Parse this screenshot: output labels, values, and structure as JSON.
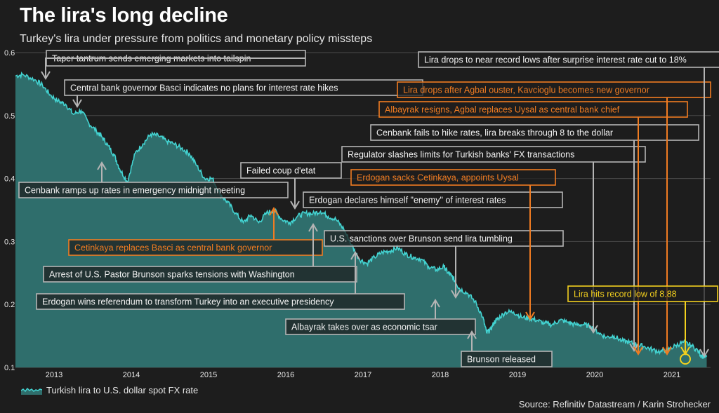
{
  "title": "The lira's long decline",
  "subtitle": "Turkey's lira under pressure from politics and monetary policy missteps",
  "source": "Source: Refinitiv Datastream / Karin Strohecker",
  "colors": {
    "background": "#1d1d1d",
    "line": "#43d3d1",
    "area": "#2f6e6c",
    "gray_box": "#b4b4b4",
    "orange": "#f07c22",
    "yellow": "#f4d11e",
    "grid": "#4a4a4a"
  },
  "chart_data": {
    "type": "area",
    "title": "The lira's long decline",
    "subtitle": "Turkey's lira under pressure from politics and monetary policy missteps",
    "xlabel": "",
    "ylabel": "",
    "xlim": [
      2012.5,
      2021.5
    ],
    "ylim": [
      0.1,
      0.6
    ],
    "grid": true,
    "legend_position": "bottom-left",
    "x_ticks": [
      {
        "v": 2013,
        "label": "2013"
      },
      {
        "v": 2014,
        "label": "2014"
      },
      {
        "v": 2015,
        "label": "2015"
      },
      {
        "v": 2016,
        "label": "2016"
      },
      {
        "v": 2017,
        "label": "2017"
      },
      {
        "v": 2018,
        "label": "2018"
      },
      {
        "v": 2019,
        "label": "2019"
      },
      {
        "v": 2020,
        "label": "2020"
      },
      {
        "v": 2021,
        "label": "2021"
      }
    ],
    "y_ticks": [
      {
        "v": 0.1,
        "label": "0.1"
      },
      {
        "v": 0.2,
        "label": "0.2"
      },
      {
        "v": 0.3,
        "label": "0.3"
      },
      {
        "v": 0.4,
        "label": "0.4"
      },
      {
        "v": 0.5,
        "label": "0.5"
      },
      {
        "v": 0.6,
        "label": "0.6"
      }
    ],
    "series": [
      {
        "name": "Turkish lira to U.S. dollar spot FX rate",
        "x": [
          2012.5,
          2012.6,
          2012.75,
          2012.85,
          2012.95,
          2013.05,
          2013.15,
          2013.25,
          2013.35,
          2013.45,
          2013.55,
          2013.62,
          2013.7,
          2013.78,
          2013.85,
          2013.95,
          2014.05,
          2014.15,
          2014.25,
          2014.35,
          2014.45,
          2014.55,
          2014.65,
          2014.75,
          2014.85,
          2014.95,
          2015.05,
          2015.15,
          2015.25,
          2015.35,
          2015.45,
          2015.55,
          2015.65,
          2015.75,
          2015.85,
          2015.95,
          2016.05,
          2016.15,
          2016.25,
          2016.35,
          2016.45,
          2016.55,
          2016.65,
          2016.75,
          2016.85,
          2016.95,
          2017.05,
          2017.15,
          2017.25,
          2017.35,
          2017.45,
          2017.55,
          2017.65,
          2017.75,
          2017.85,
          2017.95,
          2018.05,
          2018.1,
          2018.15,
          2018.2,
          2018.25,
          2018.35,
          2018.45,
          2018.55,
          2018.6,
          2018.65,
          2018.7,
          2018.75,
          2018.85,
          2018.95,
          2019.05,
          2019.15,
          2019.25,
          2019.35,
          2019.45,
          2019.55,
          2019.65,
          2019.75,
          2019.85,
          2019.95,
          2020.05,
          2020.15,
          2020.25,
          2020.35,
          2020.45,
          2020.55,
          2020.65,
          2020.75,
          2020.85,
          2020.95,
          2021.05,
          2021.15,
          2021.25,
          2021.35,
          2021.38,
          2021.45
        ],
        "y": [
          0.563,
          0.565,
          0.557,
          0.548,
          0.533,
          0.523,
          0.518,
          0.502,
          0.508,
          0.488,
          0.475,
          0.466,
          0.452,
          0.437,
          0.415,
          0.395,
          0.44,
          0.455,
          0.47,
          0.468,
          0.46,
          0.455,
          0.448,
          0.44,
          0.42,
          0.4,
          0.4,
          0.375,
          0.362,
          0.345,
          0.33,
          0.342,
          0.33,
          0.345,
          0.35,
          0.335,
          0.33,
          0.34,
          0.345,
          0.344,
          0.348,
          0.34,
          0.335,
          0.32,
          0.295,
          0.272,
          0.265,
          0.275,
          0.283,
          0.285,
          0.29,
          0.28,
          0.275,
          0.272,
          0.26,
          0.255,
          0.26,
          0.25,
          0.245,
          0.235,
          0.225,
          0.218,
          0.205,
          0.18,
          0.155,
          0.16,
          0.172,
          0.178,
          0.188,
          0.188,
          0.18,
          0.178,
          0.175,
          0.17,
          0.168,
          0.175,
          0.172,
          0.168,
          0.168,
          0.165,
          0.155,
          0.148,
          0.15,
          0.142,
          0.14,
          0.136,
          0.133,
          0.128,
          0.125,
          0.128,
          0.135,
          0.14,
          0.135,
          0.125,
          0.118,
          0.117
        ]
      }
    ],
    "annotations": [
      {
        "text": "Taper tantrum sends emerging markets into tailspin",
        "color": "gray",
        "x": 2013.35
      },
      {
        "text": "Central bank governor Basci indicates no plans for interest rate hikes",
        "color": "gray",
        "x": 2013.7
      },
      {
        "text": "Cenbank ramps up rates in emergency midnight meeting",
        "color": "gray",
        "x": 2014.1
      },
      {
        "text": "Failed coup d'etat",
        "color": "gray",
        "x": 2016.55
      },
      {
        "text": "Erdogan declares himself \"enemy\" of interest rates",
        "color": "gray",
        "x": 2016.75
      },
      {
        "text": "Cetinkaya replaces Basci as central bank governor",
        "color": "orange",
        "x": 2016.3
      },
      {
        "text": "U.S. sanctions over Brunson send lira tumbling",
        "color": "gray",
        "x": 2018.6
      },
      {
        "text": "Arrest of U.S. Pastor Brunson sparks tensions with Washington",
        "color": "gray",
        "x": 2016.8
      },
      {
        "text": "Erdogan wins referendum to transform Turkey into an executive presidency",
        "color": "gray",
        "x": 2017.3
      },
      {
        "text": "Albayrak takes over as economic tsar",
        "color": "gray",
        "x": 2018.5
      },
      {
        "text": "Brunson released",
        "color": "gray",
        "x": 2018.8
      },
      {
        "text": "Erdogan sacks Cetinkaya, appoints Uysal",
        "color": "orange",
        "x": 2019.5
      },
      {
        "text": "Regulator slashes limits for Turkish banks' FX transactions",
        "color": "gray",
        "x": 2019.85
      },
      {
        "text": "Cenbank fails to hike rates, lira breaks through 8 to the dollar",
        "color": "gray",
        "x": 2020.8
      },
      {
        "text": "Albayrak resigns, Agbal replaces Uysal as central bank chief",
        "color": "orange",
        "x": 2020.85
      },
      {
        "text": "Lira drops after Agbal ouster, Kavcioglu becomes new governor",
        "color": "orange",
        "x": 2021.22
      },
      {
        "text": "Lira drops to near record lows after surprise interest rate cut to 18%",
        "color": "gray",
        "x": 2021.48
      },
      {
        "text": "Lira hits record low of 8.88",
        "color": "yellow",
        "x": 2021.1
      }
    ]
  }
}
